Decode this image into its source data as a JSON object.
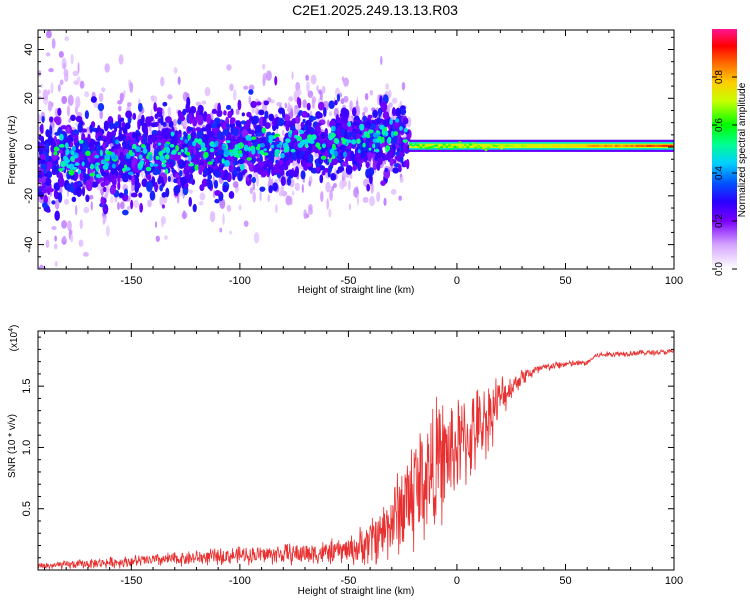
{
  "title": "C2E1.2025.249.13.13.R03",
  "colors": {
    "line": "#e83030",
    "axis": "#000000"
  },
  "chart_data": [
    {
      "type": "heatmap",
      "xlabel": "Height of straight line (km)",
      "ylabel": "Frequency (Hz)",
      "xlim": [
        -193,
        100
      ],
      "ylim": [
        -50,
        48
      ],
      "xticks": [
        -150,
        -100,
        -50,
        0,
        50,
        100
      ],
      "xtick_labels": [
        "-150",
        "-100",
        "-50",
        "0",
        "50",
        "100"
      ],
      "yticks": [
        -40,
        -20,
        0,
        20,
        40
      ],
      "ytick_labels": [
        "-40",
        "-20",
        "0",
        "20",
        "40"
      ],
      "features": {
        "noisy_region_x": [
          -193,
          -22
        ],
        "noisy_center_freq_start": -6,
        "noisy_center_freq_end": 4,
        "noisy_width_start": 9,
        "noisy_width_end": 6,
        "narrow_line_x": [
          -22,
          100
        ],
        "narrow_line_freq": 0.5,
        "narrow_line_amplitude_start": 0.55,
        "narrow_line_amplitude_end": 0.9
      },
      "colorbar": {
        "label": "Normalized spectral amplitude",
        "range": [
          0,
          1
        ],
        "ticks": [
          0.0,
          0.2,
          0.4,
          0.6,
          0.8
        ],
        "tick_labels": [
          "0.0",
          "0.2",
          "0.4",
          "0.6",
          "0.8"
        ]
      }
    },
    {
      "type": "line",
      "xlabel": "Height of straight line (km)",
      "ylabel": "SNR (10 * v/v)",
      "y_multiplier": "(x10",
      "y_multiplier_exp": "4",
      "y_multiplier_close": ")",
      "xlim": [
        -193,
        100
      ],
      "ylim": [
        0,
        1.95
      ],
      "xticks": [
        -150,
        -100,
        -50,
        0,
        50,
        100
      ],
      "xtick_labels": [
        "-150",
        "-100",
        "-50",
        "0",
        "50",
        "100"
      ],
      "yticks": [
        0.5,
        1.0,
        1.5
      ],
      "ytick_labels": [
        "0.5",
        "1.0",
        "1.5"
      ],
      "series": [
        {
          "name": "SNR",
          "trend_x": [
            -193,
            -150,
            -100,
            -60,
            -45,
            -35,
            -28,
            -20,
            -10,
            0,
            10,
            20,
            30,
            40,
            50,
            60,
            64,
            70,
            80,
            100
          ],
          "trend_y": [
            0.03,
            0.07,
            0.12,
            0.14,
            0.18,
            0.3,
            0.45,
            0.65,
            0.85,
            1.0,
            1.15,
            1.4,
            1.58,
            1.65,
            1.68,
            1.69,
            1.75,
            1.76,
            1.77,
            1.78
          ],
          "noise_x": [
            -193,
            -100,
            -50,
            -30,
            -20,
            -10,
            0,
            15,
            25,
            40,
            60,
            100
          ],
          "noise_amp": [
            0.025,
            0.06,
            0.09,
            0.25,
            0.45,
            0.45,
            0.35,
            0.25,
            0.08,
            0.03,
            0.02,
            0.02
          ]
        }
      ]
    }
  ]
}
